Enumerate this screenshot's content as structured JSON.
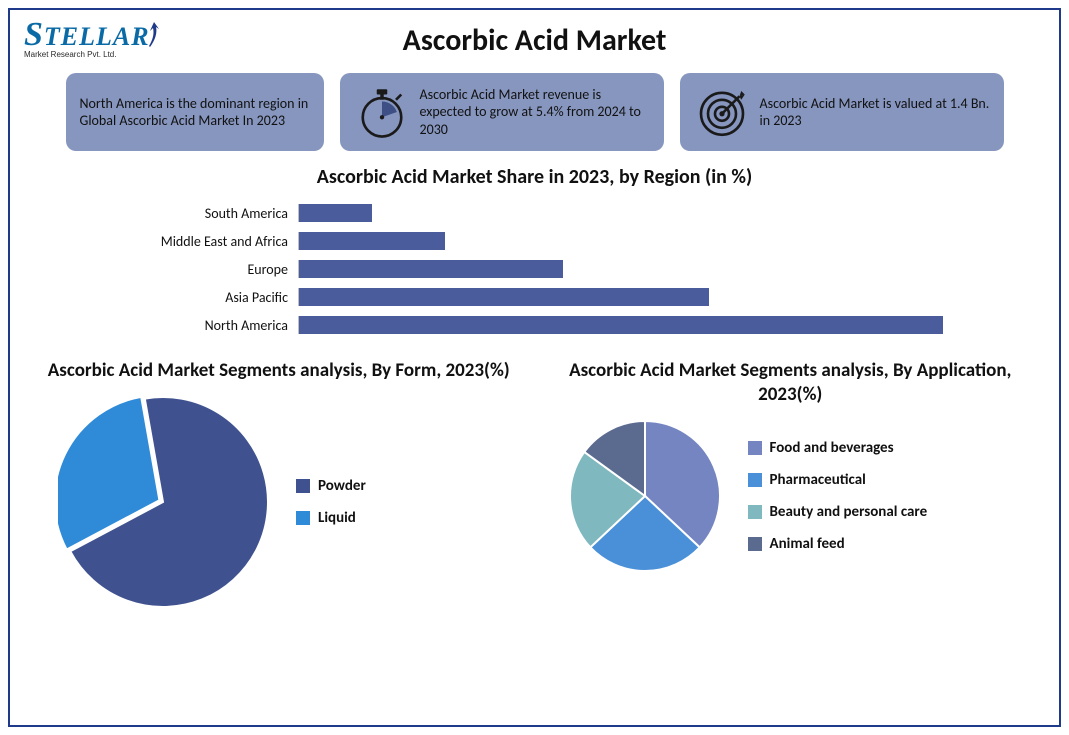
{
  "logo": {
    "brand_lead": "S",
    "brand_rest": "TELLAR",
    "subtitle": "Market Research Pvt. Ltd.",
    "text_color": "#0a6aa6",
    "arrow_color": "#1f3a8a"
  },
  "title": "Ascorbic Acid Market",
  "frame_border_color": "#1f3a8a",
  "callouts": {
    "bg_color": "#8796bf",
    "text_color": "#111111",
    "items": [
      {
        "icon": "none",
        "text": "North America is the dominant region in Global Ascorbic Acid Market In 2023"
      },
      {
        "icon": "stopwatch",
        "text": "Ascorbic Acid Market revenue is expected to grow at 5.4% from 2024 to 2030"
      },
      {
        "icon": "target",
        "text": "Ascorbic Acid Market is valued at 1.4 Bn. in 2023"
      }
    ],
    "icon_fill": "#3e4f86",
    "icon_stroke": "#1a1a1a"
  },
  "bar_chart": {
    "title": "Ascorbic Acid  Market Share in 2023, by Region (in %)",
    "title_fontsize": 20,
    "bar_color": "#4a5c9b",
    "axis_color": "#bfbfbf",
    "label_fontsize": 14,
    "max_value": 45,
    "rows": [
      {
        "label": "South America",
        "value": 5
      },
      {
        "label": "Middle East and Africa",
        "value": 10
      },
      {
        "label": "Europe",
        "value": 18
      },
      {
        "label": "Asia Pacific",
        "value": 28
      },
      {
        "label": "North America",
        "value": 44
      }
    ]
  },
  "pie_form": {
    "title": "Ascorbic Acid  Market Segments analysis, By Form, 2023(%)",
    "diameter": 210,
    "start_angle_deg": -100,
    "explode_gap": 4,
    "stroke": "#ffffff",
    "stroke_width": 2,
    "slices": [
      {
        "label": "Powder",
        "value": 70,
        "color": "#3f528f"
      },
      {
        "label": "Liquid",
        "value": 30,
        "color": "#2f8bd8"
      }
    ],
    "legend_marker": "square"
  },
  "pie_app": {
    "title": "Ascorbic Acid  Market Segments analysis, By Application, 2023(%)",
    "diameter": 150,
    "start_angle_deg": -90,
    "stroke": "#ffffff",
    "stroke_width": 2,
    "slices": [
      {
        "label": "Food and beverages",
        "value": 37,
        "color": "#7485c2"
      },
      {
        "label": "Pharmaceutical",
        "value": 26,
        "color": "#4a90d9"
      },
      {
        "label": "Beauty and personal care",
        "value": 22,
        "color": "#7fb8bf"
      },
      {
        "label": "Animal feed",
        "value": 15,
        "color": "#5b6a8f"
      }
    ],
    "legend_marker": "square"
  }
}
